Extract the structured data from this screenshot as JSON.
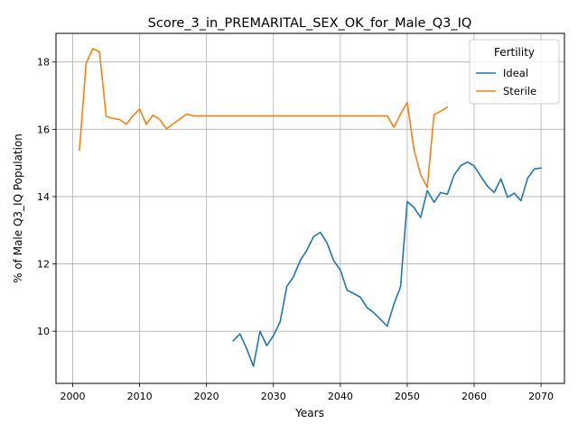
{
  "chart_data": {
    "type": "line",
    "title": "Score_3_in_PREMARITAL_SEX_OK_for_Male_Q3_IQ",
    "xlabel": "Years",
    "ylabel": "% of Male Q3_IQ Population",
    "xlim": [
      1997.5,
      2073.5
    ],
    "ylim": [
      8.45,
      18.85
    ],
    "xticks": [
      2000,
      2010,
      2020,
      2030,
      2040,
      2050,
      2060,
      2070
    ],
    "yticks": [
      10,
      12,
      14,
      16,
      18
    ],
    "grid": true,
    "legend": {
      "title": "Fertility",
      "placement": "top-right"
    },
    "series": [
      {
        "name": "Ideal",
        "color": "#1f77b4",
        "x": [
          2024,
          2025,
          2026,
          2027,
          2028,
          2029,
          2030,
          2031,
          2032,
          2033,
          2034,
          2035,
          2036,
          2037,
          2038,
          2039,
          2040,
          2041,
          2042,
          2043,
          2044,
          2045,
          2046,
          2047,
          2048,
          2049,
          2050,
          2051,
          2052,
          2053,
          2054,
          2055,
          2056,
          2057,
          2058,
          2059,
          2060,
          2061,
          2062,
          2063,
          2064,
          2065,
          2066,
          2067,
          2068,
          2069,
          2070
        ],
        "y": [
          9.72,
          9.92,
          9.48,
          8.96,
          10.0,
          9.57,
          9.87,
          10.28,
          11.33,
          11.62,
          12.1,
          12.41,
          12.81,
          12.94,
          12.63,
          12.1,
          11.82,
          11.22,
          11.12,
          11.01,
          10.7,
          10.55,
          10.35,
          10.15,
          10.8,
          11.32,
          13.85,
          13.68,
          13.38,
          14.18,
          13.83,
          14.12,
          14.07,
          14.64,
          14.92,
          15.03,
          14.91,
          14.6,
          14.31,
          14.12,
          14.53,
          13.98,
          14.1,
          13.88,
          14.55,
          14.82,
          14.85
        ]
      },
      {
        "name": "Sterile",
        "color": "#ff7f0e",
        "x": [
          2001,
          2002,
          2003,
          2004,
          2005,
          2006,
          2007,
          2008,
          2009,
          2010,
          2011,
          2012,
          2013,
          2014,
          2015,
          2016,
          2017,
          2018,
          2019,
          2020,
          2025,
          2030,
          2035,
          2040,
          2045,
          2046,
          2047,
          2048,
          2049,
          2050,
          2051,
          2052,
          2053,
          2054,
          2055,
          2056
        ],
        "y": [
          15.38,
          17.95,
          18.4,
          18.3,
          16.38,
          16.32,
          16.29,
          16.15,
          16.4,
          16.6,
          16.15,
          16.42,
          16.29,
          16.01,
          16.16,
          16.3,
          16.45,
          16.4,
          16.4,
          16.4,
          16.4,
          16.4,
          16.4,
          16.4,
          16.4,
          16.4,
          16.4,
          16.06,
          16.45,
          16.8,
          15.4,
          14.65,
          14.27,
          16.44,
          16.54,
          16.66
        ]
      }
    ]
  }
}
